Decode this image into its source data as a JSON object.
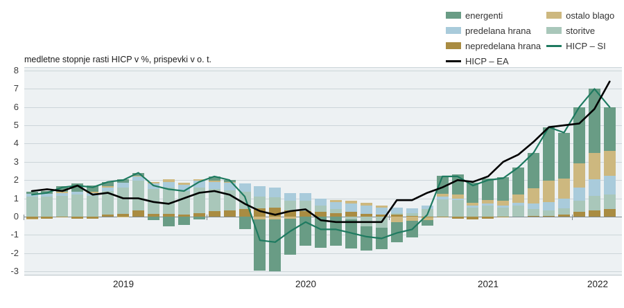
{
  "title": "medletne stopnje rasti HICP v %, prispevki v o. t.",
  "legend": {
    "items": [
      {
        "label": "energenti",
        "type": "bar",
        "color": "#699c85"
      },
      {
        "label": "predelana hrana",
        "type": "bar",
        "color": "#a9cbdb"
      },
      {
        "label": "nepredelana hrana",
        "type": "bar",
        "color": "#a98c42"
      },
      {
        "label": "HICP – EA",
        "type": "line",
        "color": "#000000"
      },
      {
        "label": "ostalo blago",
        "type": "bar",
        "color": "#cdb87f"
      },
      {
        "label": "storitve",
        "type": "bar",
        "color": "#a9c7ba"
      },
      {
        "label": "HICP – SI",
        "type": "line",
        "color": "#1e7a60"
      }
    ]
  },
  "chart_data": {
    "type": "bar",
    "subtype": "stacked-bars-with-lines",
    "title": "medletne stopnje rasti HICP v %, prispevki v o. t.",
    "unit": "odstotne točke / %",
    "ylim": [
      -3,
      8
    ],
    "yticks": [
      8,
      7,
      6,
      5,
      4,
      3,
      2,
      1,
      0,
      -1,
      -2,
      -3
    ],
    "grid": true,
    "legend_position": "top-right",
    "categories": [
      "2019-01",
      "2019-02",
      "2019-03",
      "2019-04",
      "2019-05",
      "2019-06",
      "2019-07",
      "2019-08",
      "2019-09",
      "2019-10",
      "2019-11",
      "2019-12",
      "2020-01",
      "2020-02",
      "2020-03",
      "2020-04",
      "2020-05",
      "2020-06",
      "2020-07",
      "2020-08",
      "2020-09",
      "2020-10",
      "2020-11",
      "2020-12",
      "2021-01",
      "2021-02",
      "2021-03",
      "2021-04",
      "2021-05",
      "2021-06",
      "2021-07",
      "2021-08",
      "2021-09",
      "2021-10",
      "2021-11",
      "2021-12",
      "2022-01",
      "2022-02",
      "2022-03"
    ],
    "year_labels": [
      {
        "label": "2019",
        "center_month": 6
      },
      {
        "label": "2020",
        "center_month": 18
      },
      {
        "label": "2021",
        "center_month": 30
      },
      {
        "label": "2022",
        "center_month": 37.2
      }
    ],
    "year_tick_months": [
      12,
      24,
      36
    ],
    "series": [
      {
        "name": "nepredelana hrana",
        "color": "#a98c42",
        "values": [
          -0.1,
          -0.1,
          -0.05,
          -0.1,
          -0.1,
          0.1,
          0.15,
          0.35,
          0.15,
          0.15,
          0.1,
          0.2,
          0.3,
          0.35,
          0.4,
          0.45,
          0.5,
          0.35,
          0.3,
          0.25,
          0.2,
          0.25,
          0.15,
          0.1,
          0.1,
          0.05,
          -0.05,
          -0.05,
          -0.1,
          -0.15,
          -0.1,
          -0.05,
          0.0,
          0.05,
          0.05,
          0.1,
          0.25,
          0.35,
          0.4
        ]
      },
      {
        "name": "storitve",
        "color": "#a9c7ba",
        "values": [
          1.1,
          1.1,
          1.15,
          1.2,
          1.15,
          1.3,
          1.45,
          1.6,
          1.35,
          1.45,
          1.3,
          1.4,
          1.2,
          1.1,
          0.95,
          0.65,
          0.55,
          0.5,
          0.55,
          0.35,
          0.2,
          -0.15,
          -0.55,
          -0.6,
          0.1,
          0.15,
          0.4,
          0.95,
          0.9,
          0.5,
          0.6,
          0.5,
          0.6,
          0.35,
          0.3,
          0.35,
          0.6,
          0.8,
          0.8
        ]
      },
      {
        "name": "predelana hrana",
        "color": "#a9cbdb",
        "values": [
          0.15,
          0.15,
          0.15,
          0.15,
          0.15,
          0.2,
          0.25,
          0.25,
          0.3,
          0.3,
          0.35,
          0.35,
          0.4,
          0.4,
          0.45,
          0.55,
          0.55,
          0.45,
          0.45,
          0.4,
          0.4,
          0.45,
          0.45,
          0.4,
          0.3,
          0.25,
          0.2,
          0.15,
          0.1,
          0.1,
          0.1,
          0.1,
          0.15,
          0.3,
          0.45,
          0.55,
          0.75,
          0.9,
          1.05
        ]
      },
      {
        "name": "ostalo blago",
        "color": "#cdb87f",
        "values": [
          -0.05,
          0.0,
          0.05,
          0.0,
          0.05,
          0.05,
          -0.05,
          0.05,
          0.1,
          0.15,
          0.1,
          0.1,
          0.05,
          0.05,
          0.0,
          -0.15,
          -0.15,
          -0.1,
          0.0,
          0.0,
          0.1,
          0.15,
          0.15,
          0.1,
          -0.3,
          -0.25,
          -0.15,
          0.15,
          0.2,
          0.15,
          0.2,
          0.25,
          0.45,
          0.85,
          1.15,
          1.1,
          1.3,
          1.45,
          1.35
        ]
      },
      {
        "name": "energenti",
        "color": "#699c85",
        "values": [
          0.1,
          0.15,
          0.3,
          0.45,
          0.35,
          0.25,
          0.2,
          0.15,
          -0.2,
          -0.55,
          -0.45,
          -0.15,
          0.25,
          0.1,
          -0.7,
          -2.8,
          -2.85,
          -2.0,
          -1.6,
          -1.7,
          -1.6,
          -1.6,
          -1.3,
          -1.2,
          -1.1,
          -0.9,
          -0.3,
          1.0,
          1.1,
          1.1,
          1.2,
          1.3,
          1.5,
          1.95,
          2.95,
          2.5,
          3.1,
          3.5,
          2.4
        ]
      }
    ],
    "lines": [
      {
        "name": "HICP – SI",
        "color": "#1e7a60",
        "width": 2.2,
        "values": [
          1.2,
          1.3,
          1.6,
          1.7,
          1.6,
          1.9,
          2.0,
          2.4,
          1.7,
          1.5,
          1.4,
          1.9,
          2.2,
          2.0,
          1.1,
          -1.3,
          -1.4,
          -0.8,
          -0.3,
          -0.7,
          -0.7,
          -0.9,
          -1.1,
          -1.2,
          -0.9,
          -0.7,
          0.1,
          2.2,
          2.2,
          1.7,
          2.0,
          2.1,
          2.7,
          3.5,
          4.9,
          4.6,
          6.0,
          7.0,
          6.0
        ]
      },
      {
        "name": "HICP – EA",
        "color": "#000000",
        "width": 2.6,
        "values": [
          1.4,
          1.5,
          1.4,
          1.7,
          1.2,
          1.3,
          1.0,
          1.0,
          0.8,
          0.7,
          1.0,
          1.3,
          1.4,
          1.2,
          0.7,
          0.3,
          0.1,
          0.3,
          0.4,
          -0.2,
          -0.3,
          -0.3,
          -0.3,
          -0.3,
          0.9,
          0.9,
          1.3,
          1.6,
          2.0,
          1.9,
          2.2,
          3.0,
          3.4,
          4.1,
          4.9,
          5.0,
          5.1,
          5.9,
          7.4
        ]
      }
    ]
  }
}
